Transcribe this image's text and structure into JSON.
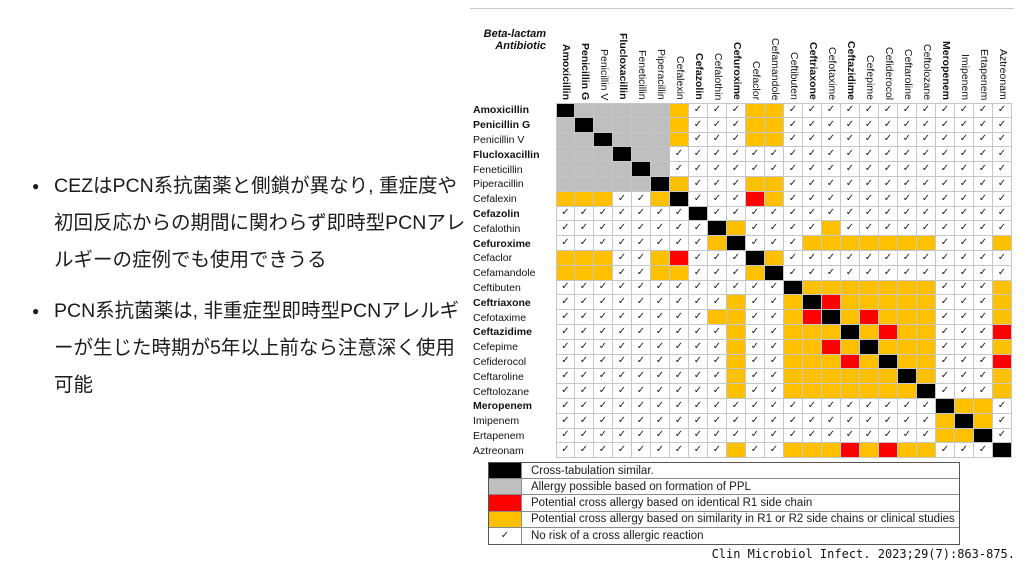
{
  "left_panel": {
    "bullets": [
      "CEZはPCN系抗菌薬と側鎖が異なり, 重症度や初回反応からの期間に関わらず即時型PCNアレルギーの症例でも使用できうる",
      "PCN系抗菌薬は, 非重症型即時型PCNアレルギーが生じた時期が5年以上前なら注意深く使用可能"
    ],
    "bullet_glyph": "●"
  },
  "chart_data": {
    "type": "heatmap",
    "title": "",
    "corner_label_lines": [
      "Beta-lactam",
      "Antibiotic"
    ],
    "check_glyph": "✓",
    "drugs": [
      {
        "name": "Amoxicillin",
        "bold": true
      },
      {
        "name": "Penicillin G",
        "bold": true
      },
      {
        "name": "Penicillin V",
        "bold": false
      },
      {
        "name": "Flucloxacillin",
        "bold": true
      },
      {
        "name": "Feneticillin",
        "bold": false
      },
      {
        "name": "Piperacillin",
        "bold": false
      },
      {
        "name": "Cefalexin",
        "bold": false
      },
      {
        "name": "Cefazolin",
        "bold": true
      },
      {
        "name": "Cefalothin",
        "bold": false
      },
      {
        "name": "Cefuroxime",
        "bold": true
      },
      {
        "name": "Cefaclor",
        "bold": false
      },
      {
        "name": "Cefamandole",
        "bold": false
      },
      {
        "name": "Ceftibuten",
        "bold": false
      },
      {
        "name": "Ceftriaxone",
        "bold": true
      },
      {
        "name": "Cefotaxime",
        "bold": false
      },
      {
        "name": "Ceftazidime",
        "bold": true
      },
      {
        "name": "Cefepime",
        "bold": false
      },
      {
        "name": "Cefiderocol",
        "bold": false
      },
      {
        "name": "Ceftaroline",
        "bold": false
      },
      {
        "name": "Ceftolozane",
        "bold": false
      },
      {
        "name": "Meropenem",
        "bold": true
      },
      {
        "name": "Imipenem",
        "bold": false
      },
      {
        "name": "Ertapenem",
        "bold": false
      },
      {
        "name": "Aztreonam",
        "bold": false
      }
    ],
    "code_map": {
      "K": "black — cross-tabulation similar (diagonal/self)",
      "G": "gray — allergy possible based on formation of PPL",
      "R": "red — potential cross allergy based on identical R1 side chain",
      "O": "orange — potential cross allergy based on similarity in R1 or R2 side chains or clinical studies",
      "C": "check — no risk of a cross allergic reaction"
    },
    "cell_codes": [
      "KGGGGGOCCCOOCCCCCCCCCCCC",
      "GKGGGGOCCCOOCCCCCCCCCCCC",
      "GGKGGGOCCCOOCCCCCCCCCCCC",
      "GGGKGGCCCCCCCCCCCCCCCCCC",
      "GGGGKGCCCCCCCCCCCCCCCCCC",
      "GGGGGKOCCCOOCCCCCCCCCCCC",
      "OOOCCOKCCCROCCCCCCCCCCCC",
      "CCCCCCCKCCCCCCCCCCCCCCCC",
      "CCCCCCCCKOCCCCOCCCCCCCCC",
      "CCCCCCCCOKCCCOOOOOOOCCCO",
      "OOOCCORCCCKOCCCCCCCCCCCC",
      "OOOCCOOCCCOKCCCCCCCCCCCC",
      "CCCCCCCCCCCCKOOOOOOOCCCO",
      "CCCCCCCCCOCCOKROOOOOCCCO",
      "CCCCCCCCOOCCORKOROOOCCCO",
      "CCCCCCCCCOCCOOOKOROOCCCR",
      "CCCCCCCCCOCCOOROKOOOCCCO",
      "CCCCCCCCCOCCOOOROKOOCCCR",
      "CCCCCCCCCOCCOOOOOOKOCCCO",
      "CCCCCCCCCOCCOOOOOOOKCCCO",
      "CCCCCCCCCCCCCCCCCCCCKOOC",
      "CCCCCCCCCCCCCCCCCCCCOKOC",
      "CCCCCCCCCCCCCCCCCCCCOOKC",
      "CCCCCCCCCOCCOOOROROOCCCK"
    ],
    "colors": {
      "black": "#000000",
      "gray": "#bfbfbf",
      "red": "#ff0000",
      "orange": "#ffc000"
    },
    "legend_position": "bottom"
  },
  "legend": {
    "items": [
      {
        "swatch": "black",
        "label": "Cross-tabulation similar."
      },
      {
        "swatch": "gray",
        "label": "Allergy possible based on formation of PPL"
      },
      {
        "swatch": "red",
        "label": "Potential cross allergy based on identical R1 side chain"
      },
      {
        "swatch": "orange",
        "label": "Potential cross allergy based on similarity in R1 or R2 side chains or clinical studies"
      },
      {
        "swatch": "check",
        "label": "No risk of a cross allergic reaction"
      }
    ]
  },
  "citation": "Clin Microbiol Infect. 2023;29(7):863-875."
}
